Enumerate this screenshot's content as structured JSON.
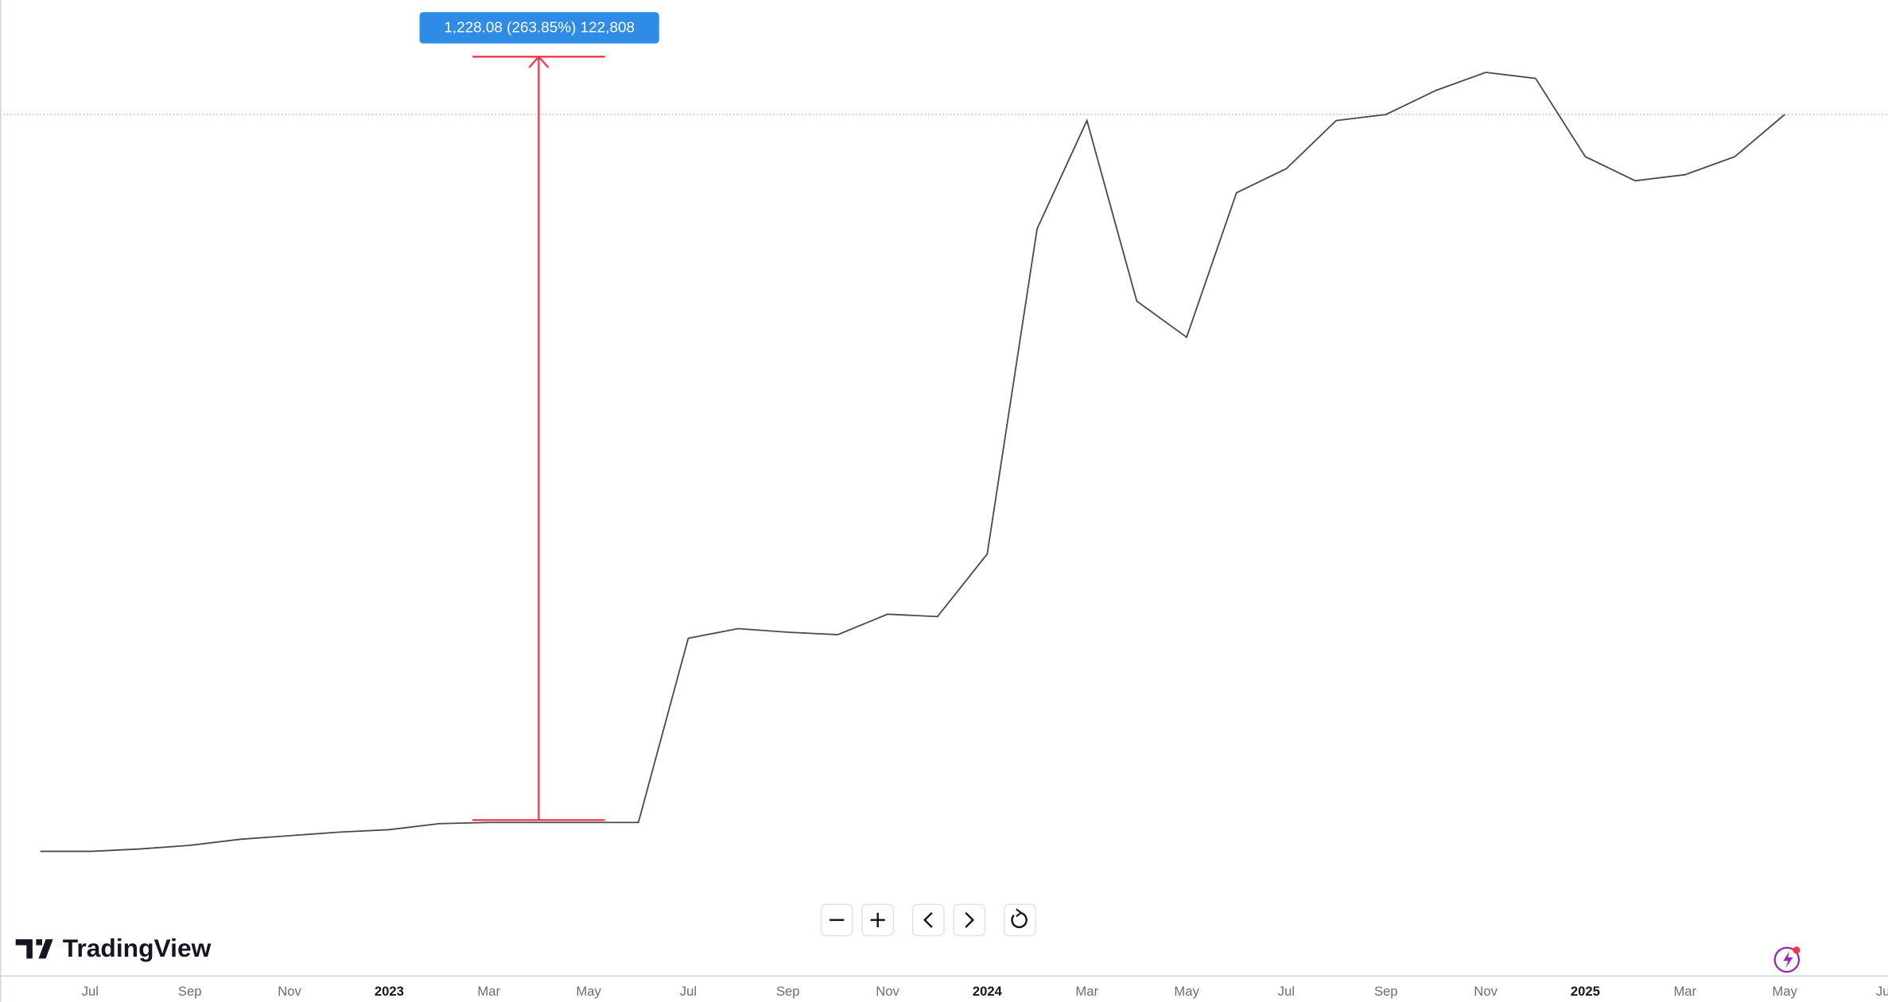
{
  "chart_data": {
    "type": "line",
    "x": [
      "2022-06",
      "2022-07",
      "2022-08",
      "2022-09",
      "2022-10",
      "2022-11",
      "2022-12",
      "2023-01",
      "2023-02",
      "2023-03",
      "2023-04",
      "2023-05",
      "2023-06",
      "2023-07",
      "2023-08",
      "2023-09",
      "2023-10",
      "2023-11",
      "2023-12",
      "2024-01",
      "2024-02",
      "2024-03",
      "2024-04",
      "2024-05",
      "2024-06",
      "2024-07",
      "2024-08",
      "2024-09",
      "2024-10",
      "2024-11",
      "2024-12",
      "2025-01",
      "2025-02",
      "2025-03",
      "2025-04",
      "2025-05"
    ],
    "series": [
      {
        "color": "#4a4a4a",
        "values": [
          415.0,
          415.0,
          418.9,
          424.7,
          434.4,
          440.2,
          446.0,
          449.9,
          459.6,
          461.5,
          461.5,
          461.5,
          461.5,
          757.9,
          773.4,
          767.6,
          763.6,
          796.6,
          792.8,
          893.5,
          1416.5,
          1590.8,
          1300.2,
          1242.1,
          1474.6,
          1513.3,
          1590.8,
          1600.5,
          1639.2,
          1668.3,
          1658.6,
          1532.7,
          1494.0,
          1503.6,
          1532.7,
          1600.5
        ]
      }
    ],
    "ylim": [
      215.5,
      1784.5
    ],
    "xlim": [
      "2022-06",
      "2025-07"
    ],
    "xticks": [
      {
        "value": "2022-07",
        "label": "Jul"
      },
      {
        "value": "2022-09",
        "label": "Sep"
      },
      {
        "value": "2022-11",
        "label": "Nov"
      },
      {
        "value": "2023-01",
        "label": "2023"
      },
      {
        "value": "2023-03",
        "label": "Mar"
      },
      {
        "value": "2023-05",
        "label": "May"
      },
      {
        "value": "2023-07",
        "label": "Jul"
      },
      {
        "value": "2023-09",
        "label": "Sep"
      },
      {
        "value": "2023-11",
        "label": "Nov"
      },
      {
        "value": "2024-01",
        "label": "2024"
      },
      {
        "value": "2024-03",
        "label": "Mar"
      },
      {
        "value": "2024-05",
        "label": "May"
      },
      {
        "value": "2024-07",
        "label": "Jul"
      },
      {
        "value": "2024-09",
        "label": "Sep"
      },
      {
        "value": "2024-11",
        "label": "Nov"
      },
      {
        "value": "2025-01",
        "label": "2025"
      },
      {
        "value": "2025-03",
        "label": "Mar"
      },
      {
        "value": "2025-05",
        "label": "May"
      },
      {
        "value": "2025-07",
        "label": "Jul"
      }
    ],
    "price_line": 1600.5,
    "measure": {
      "x": "2023-04",
      "values": [
        465.4,
        1693.48
      ],
      "color": "#f23645",
      "label": "1,228.08 (263.85%) 122,808"
    },
    "branding": "TradingView"
  }
}
